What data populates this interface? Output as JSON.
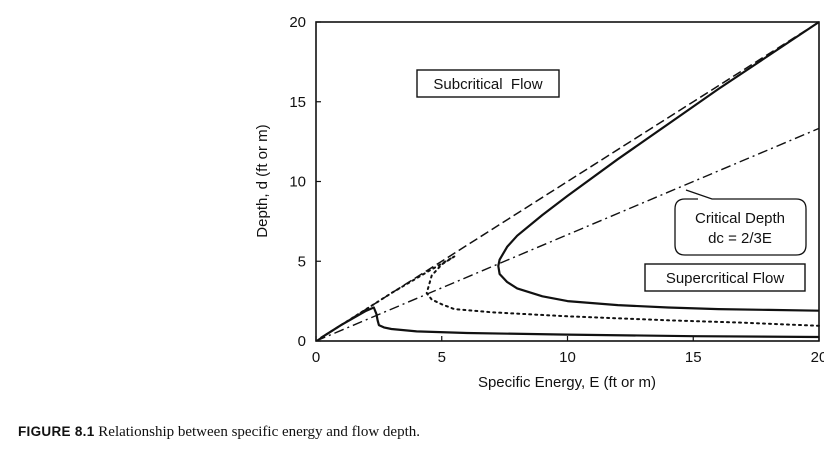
{
  "chart_data": {
    "type": "line",
    "xlabel": "Specific Energy, E (ft or m)",
    "ylabel": "Depth, d (ft or m)",
    "xlim": [
      0,
      20
    ],
    "ylim": [
      0,
      20
    ],
    "xticks": [
      "0",
      "5",
      "10",
      "15",
      "20"
    ],
    "yticks": [
      "0",
      "5",
      "10",
      "15",
      "20"
    ],
    "grid": false,
    "series": [
      {
        "style": "dash",
        "x": [
          0,
          20
        ],
        "y": [
          0,
          20
        ]
      },
      {
        "style": "solid",
        "x": [
          20.0,
          18.0,
          16.0,
          14.0,
          12.0,
          10.0,
          9.0,
          8.0,
          7.6,
          7.3,
          7.25,
          7.3,
          7.6,
          8.0,
          9.0,
          10.0,
          12.0,
          14.0,
          16.0,
          18.0,
          20.0
        ],
        "y": [
          20.0,
          17.9,
          15.8,
          13.6,
          11.4,
          9.1,
          7.9,
          6.6,
          5.9,
          5.1,
          4.7,
          4.2,
          3.7,
          3.3,
          2.8,
          2.5,
          2.25,
          2.1,
          2.0,
          1.95,
          1.9
        ]
      },
      {
        "style": "dot",
        "x": [
          0.2,
          1.5,
          3.0,
          4.5,
          5.5,
          5.0,
          4.6,
          4.4,
          4.6,
          5.0,
          5.5,
          7.0,
          10.0,
          14.0,
          17.0,
          20.0
        ],
        "y": [
          0.2,
          1.5,
          3.0,
          4.4,
          5.3,
          4.8,
          4.1,
          3.0,
          2.6,
          2.3,
          2.0,
          1.8,
          1.55,
          1.3,
          1.15,
          0.95
        ]
      },
      {
        "style": "solid",
        "x": [
          0.2,
          1.0,
          2.0,
          2.3,
          2.4,
          2.45,
          2.5,
          2.7,
          3.0,
          4.0,
          6.0,
          10.0,
          15.0,
          20.0
        ],
        "y": [
          0.2,
          1.0,
          1.9,
          2.1,
          1.7,
          1.3,
          1.0,
          0.85,
          0.75,
          0.6,
          0.5,
          0.4,
          0.3,
          0.25
        ]
      },
      {
        "style": "dashdot",
        "x": [
          0,
          20
        ],
        "y": [
          0,
          13.33
        ]
      }
    ],
    "annotations": [
      {
        "text": "Subcritical  Flow"
      },
      {
        "lines": [
          "Critical Depth",
          "dc = 2/3E"
        ]
      },
      {
        "text": "Supercritical Flow"
      }
    ]
  },
  "figure_caption": {
    "number": "FIGURE 8.1",
    "text": " Relationship between specific energy and flow depth."
  }
}
